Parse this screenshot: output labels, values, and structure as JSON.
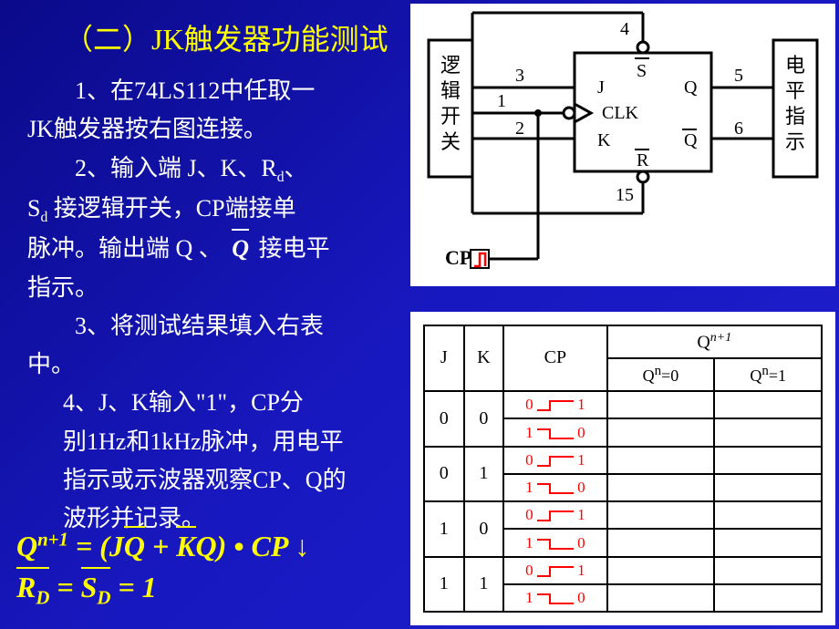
{
  "heading": "（二）JK触发器功能测试",
  "para1a": "1、在74LS112中任取一",
  "para1b": "JK触发器按右图连接。",
  "para2a": "2、输入端 J、K、R",
  "para2a_sub": "d",
  "para2a_tail": "、",
  "para2b_head": "S",
  "para2b_sub": "d",
  "para2b": " 接逻辑开关，CP端接单",
  "para2c": "脉冲。输出端 Q 、",
  "para2c_qbar": "Q",
  "para2c_tail": "接电平",
  "para2d": "指示。",
  "para3a": "3、将测试结果填入右表",
  "para3b": "中。",
  "para4a": "4、J、K输入\"1\"，CP分",
  "para4b": "别1Hz和1kHz脉冲，用电平",
  "para4c": "指示或示波器观察CP、Q的",
  "para4d": "波形并记录。",
  "formula1_lhs_Q": "Q",
  "formula1_lhs_sup": "n+1",
  "formula1_mid": " = (J",
  "formula1_qbar": "Q",
  "formula1_mid2": " + ",
  "formula1_kbar": "K",
  "formula1_mid3": "Q) • CP ↓",
  "formula2_rd": "R",
  "formula2_d": "D",
  "formula2_eq": " = ",
  "formula2_sd": "S",
  "formula2_eq1": " = 1",
  "circuit": {
    "left_box": "逻辑开关",
    "right_box": "电平指示",
    "pins": {
      "p1": "1",
      "p2": "2",
      "p3": "3",
      "p4": "4",
      "p5": "5",
      "p6": "6",
      "p15": "15"
    },
    "labels": {
      "J": "J",
      "K": "K",
      "S": "S",
      "R": "R",
      "Q": "Q",
      "Qbar": "Q",
      "CLK": "CLK",
      "CP": "CP"
    }
  },
  "table": {
    "headers": {
      "J": "J",
      "K": "K",
      "CP": "CP",
      "Qn1": "Q",
      "Qn1_sup": "n+1",
      "Qn0": "Q",
      "Qn0_sup": "n",
      "eq0": "=0",
      "eq1": "=1"
    },
    "rows": [
      {
        "j": "0",
        "k": "0"
      },
      {
        "j": "0",
        "k": "1"
      },
      {
        "j": "1",
        "k": "0"
      },
      {
        "j": "1",
        "k": "1"
      }
    ],
    "cp_rise_l": "0",
    "cp_rise_r": "1",
    "cp_fall_l": "1",
    "cp_fall_r": "0"
  },
  "colors": {
    "bg_start": "#0a0a8a",
    "bg_end": "#2020d0",
    "heading": "#ffff00",
    "body": "#ffffff",
    "formula": "#ffff00",
    "diagram_bg": "#ffffff",
    "diagram_stroke": "#000000",
    "red": "#ff0000"
  }
}
